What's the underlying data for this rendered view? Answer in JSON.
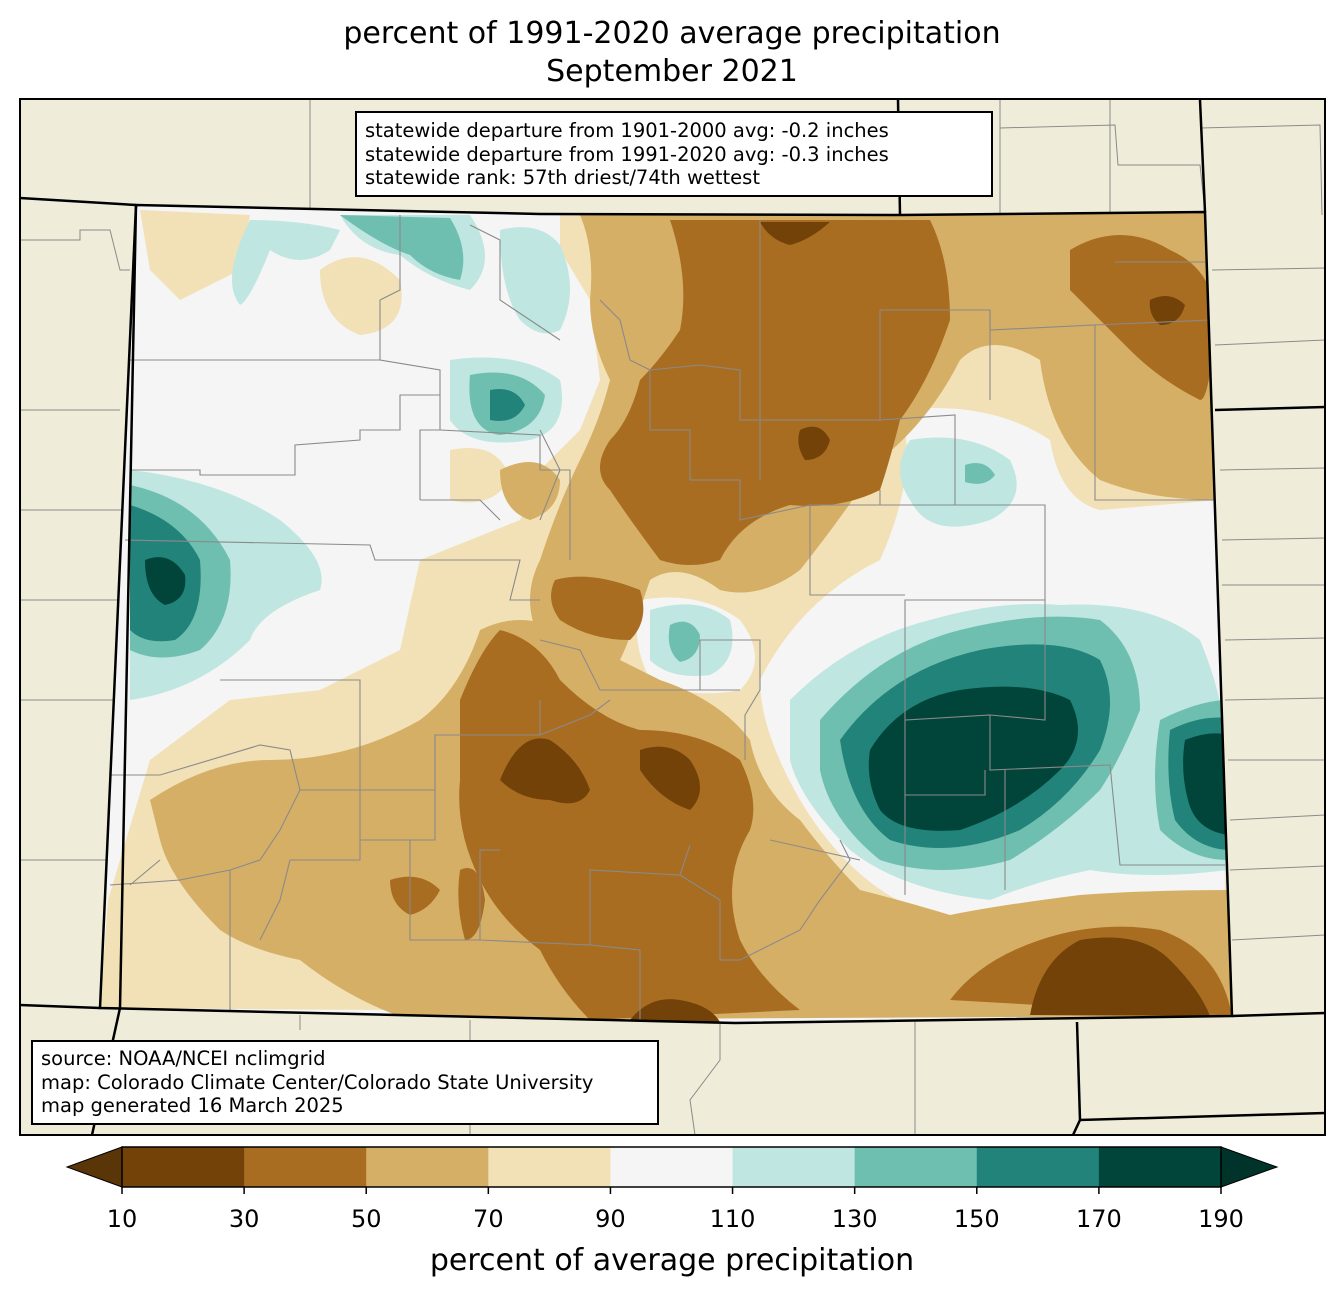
{
  "title": {
    "line1": "percent of 1991-2020 average precipitation",
    "line2": "September 2021"
  },
  "stats_box": {
    "line1": "statewide departure from 1901-2000 avg: -0.2 inches",
    "line2": "statewide departure from 1991-2020 avg: -0.3 inches",
    "line3": "statewide rank: 57th driest/74th wettest"
  },
  "source_box": {
    "line1": "source: NOAA/NCEI nclimgrid",
    "line2": "map: Colorado Climate Center/Colorado State University",
    "line3": "map generated 16 March 2025"
  },
  "colorbar": {
    "label": "percent of average precipitation",
    "ticks": [
      "10",
      "30",
      "50",
      "70",
      "90",
      "110",
      "130",
      "150",
      "170",
      "190"
    ],
    "colors": [
      "#734209",
      "#a96d22",
      "#d6af67",
      "#f2e1b6",
      "#f4f5f4",
      "#bfe6e0",
      "#6fbfb0",
      "#218379",
      "#014439",
      "#01332b"
    ],
    "under_color": "#5a3508",
    "over_color": "#00332a"
  },
  "map_colors": {
    "outside_state": "#efedd9",
    "county_lines": "#8a8a8a",
    "state_border": "#000000"
  }
}
